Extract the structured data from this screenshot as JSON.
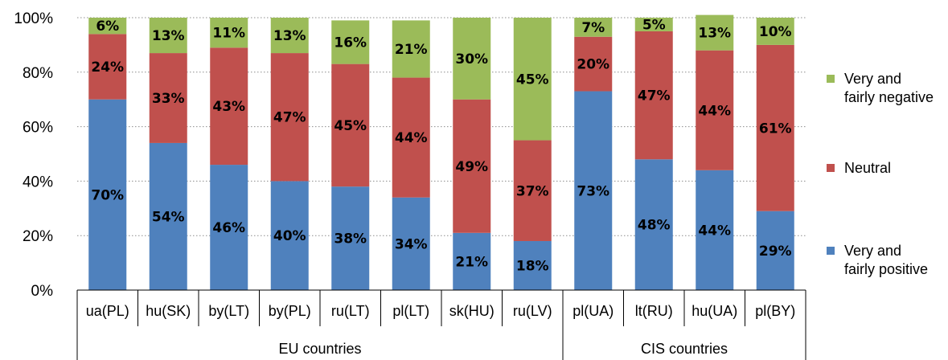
{
  "chart_data": {
    "type": "bar",
    "stacked": true,
    "categories": [
      "ua(PL)",
      "hu(SK)",
      "by(LT)",
      "by(PL)",
      "ru(LT)",
      "pl(LT)",
      "sk(HU)",
      "ru(LV)",
      "pl(UA)",
      "lt(RU)",
      "hu(UA)",
      "pl(BY)"
    ],
    "groups": [
      {
        "label": "EU countries",
        "count": 8
      },
      {
        "label": "CIS countries",
        "count": 4
      }
    ],
    "series": [
      {
        "name": "Very and fairly positive",
        "legend_lines": [
          "Very and",
          "fairly positive"
        ],
        "color": "#4f81bd",
        "values": [
          70,
          54,
          46,
          40,
          38,
          34,
          21,
          18,
          73,
          48,
          44,
          29
        ]
      },
      {
        "name": "Neutral",
        "legend_lines": [
          "Neutral"
        ],
        "color": "#c0504d",
        "values": [
          24,
          33,
          43,
          47,
          45,
          44,
          49,
          37,
          20,
          47,
          44,
          61
        ]
      },
      {
        "name": "Very and fairly negative",
        "legend_lines": [
          "Very and",
          "fairly negative"
        ],
        "color": "#9bbb59",
        "values": [
          6,
          13,
          11,
          13,
          16,
          21,
          30,
          45,
          7,
          5,
          13,
          10
        ]
      }
    ],
    "ylim": [
      0,
      100
    ],
    "yticks": [
      "0%",
      "20%",
      "40%",
      "60%",
      "80%",
      "100%"
    ],
    "grid": true,
    "legend_position": "right",
    "xlabel": "",
    "ylabel": "",
    "title": ""
  }
}
